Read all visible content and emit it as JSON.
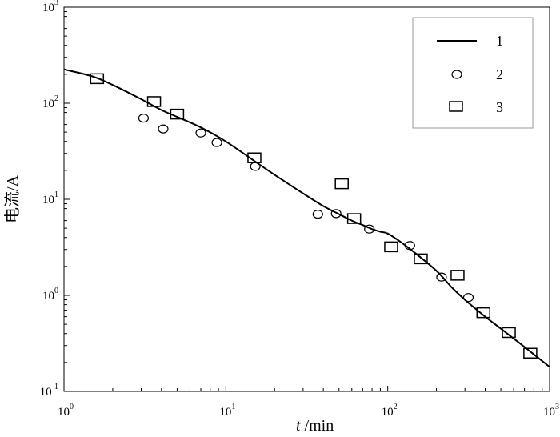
{
  "chart_data": {
    "type": "scatter",
    "xscale": "log",
    "yscale": "log",
    "xlim": [
      1,
      1000
    ],
    "ylim": [
      0.1,
      1000
    ],
    "x_ticks": [
      {
        "base": "10",
        "exp": "0",
        "value": 1
      },
      {
        "base": "10",
        "exp": "1",
        "value": 10
      },
      {
        "base": "10",
        "exp": "2",
        "value": 100
      },
      {
        "base": "10",
        "exp": "3",
        "value": 1000
      }
    ],
    "y_ticks": [
      {
        "base": "10",
        "exp": "-1",
        "value": 0.1
      },
      {
        "base": "10",
        "exp": "0",
        "value": 1
      },
      {
        "base": "10",
        "exp": "1",
        "value": 10
      },
      {
        "base": "10",
        "exp": "2",
        "value": 100
      },
      {
        "base": "10",
        "exp": "3",
        "value": 1000
      }
    ],
    "xlabel_italic": "t",
    "xlabel_unit": " /min",
    "ylabel": "电流/A",
    "grid": false,
    "legend_position": "top-right",
    "series": [
      {
        "name": "1",
        "style": "line",
        "x": [
          1,
          1.5,
          2,
          3,
          4,
          5,
          7,
          10,
          15,
          20,
          30,
          40,
          50,
          60,
          70,
          80,
          90,
          100,
          120,
          150,
          200,
          250,
          300,
          400,
          500,
          700,
          1000
        ],
        "y": [
          225,
          190,
          155,
          110,
          85,
          72,
          56,
          40,
          25,
          18,
          11.5,
          8.5,
          7.0,
          6.0,
          5.4,
          4.9,
          4.6,
          4.4,
          3.6,
          2.7,
          1.8,
          1.2,
          0.9,
          0.6,
          0.45,
          0.29,
          0.18
        ]
      },
      {
        "name": "2",
        "style": "circle",
        "x": [
          3.1,
          4.1,
          7.0,
          8.8,
          15.2,
          37,
          48,
          77,
          137,
          215,
          315
        ],
        "y": [
          70,
          54,
          49,
          39,
          22,
          7.0,
          7.1,
          4.9,
          3.3,
          1.55,
          0.95
        ]
      },
      {
        "name": "3",
        "style": "square",
        "x": [
          1.6,
          3.6,
          5.0,
          15.0,
          52,
          62,
          105,
          160,
          270,
          390,
          560,
          760
        ],
        "y": [
          180,
          104,
          77,
          27,
          14.5,
          6.3,
          3.2,
          2.4,
          1.62,
          0.66,
          0.41,
          0.25
        ]
      }
    ]
  }
}
